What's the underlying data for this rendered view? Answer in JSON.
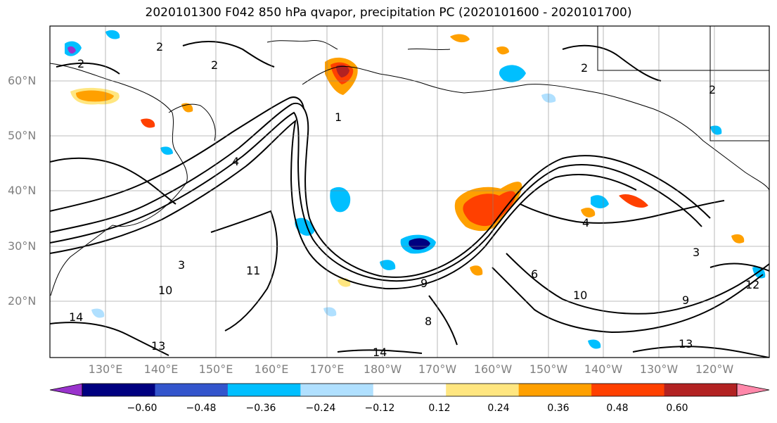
{
  "title": "2020101300 F042 850 hPa qvapor, precipitation PC (2020101600 - 2020101700)",
  "map": {
    "lat_ticks": [
      "60°N",
      "50°N",
      "40°N",
      "30°N",
      "20°N"
    ],
    "lon_ticks": [
      "130°E",
      "140°E",
      "150°E",
      "160°E",
      "170°E",
      "180°W",
      "170°W",
      "160°W",
      "150°W",
      "140°W",
      "130°W",
      "120°W"
    ],
    "contour_labels": [
      "2",
      "2",
      "2",
      "2",
      "2",
      "4",
      "4",
      "6",
      "8",
      "10",
      "10",
      "11",
      "12",
      "13",
      "13",
      "14",
      "14",
      "3",
      "3",
      "9",
      "9",
      "1"
    ],
    "background": "#ffffff",
    "coastline_color": "#000000"
  },
  "colorbar": {
    "ticks": [
      "−0.60",
      "−0.48",
      "−0.36",
      "−0.24",
      "−0.12",
      "0.12",
      "0.24",
      "0.36",
      "0.48",
      "0.60"
    ],
    "colors": [
      "#9933cc",
      "#000080",
      "#3355cc",
      "#00bfff",
      "#b0e0ff",
      "#ffffff",
      "#ffe680",
      "#ffa000",
      "#ff4000",
      "#b22222",
      "#ff88aa"
    ]
  },
  "anomalies": [
    {
      "name": "positive-anomaly-alaska-gulf",
      "value": 0.36,
      "color": "#ff4000"
    },
    {
      "name": "positive-anomaly-bering",
      "value": 0.48,
      "color": "#cc2200"
    },
    {
      "name": "negative-anomaly-central-pacific",
      "value": -0.48,
      "color": "#000080"
    },
    {
      "name": "negative-anomaly-east-asia",
      "value": -0.36,
      "color": "#00bfff"
    }
  ]
}
